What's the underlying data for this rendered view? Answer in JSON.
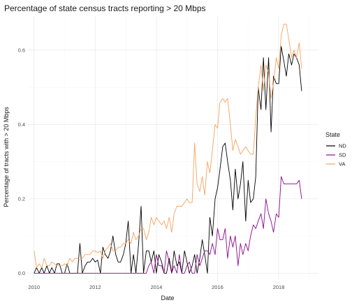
{
  "chart_data": {
    "type": "line",
    "title": "Percentage of state census tracts reporting > 20 Mbps",
    "xlabel": "Date",
    "ylabel": "Percentage of tracts with > 20 Mbps",
    "xlim": [
      2009.8,
      2019.3
    ],
    "ylim": [
      -0.02,
      0.69
    ],
    "x_ticks": [
      2010,
      2012,
      2014,
      2016,
      2018
    ],
    "y_ticks": [
      0.0,
      0.2,
      0.4,
      0.6
    ],
    "y_tick_labels": [
      "0.0",
      "0.2",
      "0.4",
      "0.6"
    ],
    "grid": true,
    "legend": {
      "title": "State",
      "placement": "right"
    },
    "series": [
      {
        "name": "ND",
        "color": "#000000",
        "x": [
          2010.0,
          2010.08,
          2010.17,
          2010.25,
          2010.33,
          2010.42,
          2010.5,
          2010.58,
          2010.67,
          2010.75,
          2010.83,
          2010.92,
          2011.0,
          2011.08,
          2011.17,
          2011.25,
          2011.33,
          2011.42,
          2011.5,
          2011.58,
          2011.67,
          2011.75,
          2011.83,
          2011.92,
          2012.0,
          2012.08,
          2012.17,
          2012.25,
          2012.33,
          2012.42,
          2012.5,
          2012.58,
          2012.67,
          2012.75,
          2012.83,
          2012.92,
          2013.0,
          2013.08,
          2013.17,
          2013.25,
          2013.33,
          2013.42,
          2013.5,
          2013.58,
          2013.67,
          2013.75,
          2013.83,
          2013.92,
          2014.0,
          2014.08,
          2014.17,
          2014.25,
          2014.33,
          2014.42,
          2014.5,
          2014.58,
          2014.67,
          2014.75,
          2014.83,
          2014.92,
          2015.0,
          2015.08,
          2015.17,
          2015.25,
          2015.33,
          2015.42,
          2015.5,
          2015.58,
          2015.67,
          2015.75,
          2015.83,
          2015.92,
          2016.0,
          2016.08,
          2016.17,
          2016.25,
          2016.33,
          2016.42,
          2016.5,
          2016.58,
          2016.67,
          2016.75,
          2016.83,
          2016.92,
          2017.0,
          2017.08,
          2017.17,
          2017.25,
          2017.33,
          2017.42,
          2017.5,
          2017.58,
          2017.67,
          2017.75,
          2017.83,
          2017.92,
          2018.0,
          2018.08,
          2018.17,
          2018.25,
          2018.33,
          2018.42,
          2018.5,
          2018.58,
          2018.67,
          2018.75
        ],
        "values": [
          0.0,
          0.015,
          0.0,
          0.015,
          0.0,
          0.02,
          0.0,
          0.015,
          0.0,
          0.025,
          0.025,
          0.0,
          0.0,
          0.025,
          0.0,
          0.0,
          0.0,
          0.0,
          0.08,
          0.0,
          0.02,
          0.03,
          0.03,
          0.04,
          0.03,
          0.035,
          0.0,
          0.07,
          0.05,
          0.04,
          0.06,
          0.1,
          0.05,
          0.03,
          0.03,
          0.05,
          0.08,
          0.14,
          0.0,
          0.05,
          0.0,
          0.08,
          0.18,
          0.0,
          0.06,
          0.06,
          0.03,
          0.06,
          0.0,
          0.05,
          0.03,
          0.0,
          0.0,
          0.04,
          0.0,
          0.06,
          0.02,
          0.03,
          0.0,
          0.06,
          0.03,
          0.0,
          0.02,
          0.05,
          0.0,
          0.04,
          0.09,
          0.05,
          0.0,
          0.15,
          0.1,
          0.2,
          0.23,
          0.28,
          0.34,
          0.35,
          0.3,
          0.25,
          0.17,
          0.28,
          0.2,
          0.24,
          0.3,
          0.14,
          0.25,
          0.19,
          0.2,
          0.26,
          0.5,
          0.44,
          0.58,
          0.44,
          0.58,
          0.38,
          0.53,
          0.51,
          0.51,
          0.61,
          0.57,
          0.53,
          0.59,
          0.56,
          0.59,
          0.58,
          0.56,
          0.49
        ]
      },
      {
        "name": "SD",
        "color": "#8b0a8b",
        "x": [
          2010.0,
          2010.08,
          2010.17,
          2010.25,
          2010.33,
          2010.42,
          2010.5,
          2010.58,
          2010.67,
          2010.75,
          2010.83,
          2010.92,
          2011.0,
          2011.08,
          2011.17,
          2011.25,
          2011.33,
          2011.42,
          2011.5,
          2011.58,
          2011.67,
          2011.75,
          2011.83,
          2011.92,
          2012.0,
          2012.08,
          2012.17,
          2012.25,
          2012.33,
          2012.42,
          2012.5,
          2012.58,
          2012.67,
          2012.75,
          2012.83,
          2012.92,
          2013.0,
          2013.08,
          2013.17,
          2013.25,
          2013.33,
          2013.42,
          2013.5,
          2013.58,
          2013.67,
          2013.75,
          2013.83,
          2013.92,
          2014.0,
          2014.08,
          2014.17,
          2014.25,
          2014.33,
          2014.42,
          2014.5,
          2014.58,
          2014.67,
          2014.75,
          2014.83,
          2014.92,
          2015.0,
          2015.08,
          2015.17,
          2015.25,
          2015.33,
          2015.42,
          2015.5,
          2015.58,
          2015.67,
          2015.75,
          2015.83,
          2015.92,
          2016.0,
          2016.08,
          2016.17,
          2016.25,
          2016.33,
          2016.42,
          2016.5,
          2016.58,
          2016.67,
          2016.75,
          2016.83,
          2016.92,
          2017.0,
          2017.08,
          2017.17,
          2017.25,
          2017.33,
          2017.42,
          2017.5,
          2017.58,
          2017.67,
          2017.75,
          2017.83,
          2017.92,
          2018.0,
          2018.08,
          2018.17,
          2018.25,
          2018.33,
          2018.42,
          2018.5,
          2018.58,
          2018.67,
          2018.75
        ],
        "values": [
          0.0,
          0.0,
          0.0,
          0.0,
          0.0,
          0.0,
          0.0,
          0.0,
          0.0,
          0.0,
          0.0,
          0.0,
          0.0,
          0.0,
          0.0,
          0.0,
          0.0,
          0.0,
          0.0,
          0.0,
          0.0,
          0.0,
          0.0,
          0.0,
          0.0,
          0.0,
          0.0,
          0.0,
          0.0,
          0.0,
          0.0,
          0.0,
          0.0,
          0.0,
          0.0,
          0.0,
          0.0,
          0.0,
          0.0,
          0.0,
          0.0,
          0.0,
          0.0,
          0.0,
          0.0,
          0.02,
          0.03,
          0.0,
          0.05,
          0.02,
          0.02,
          0.0,
          0.06,
          0.03,
          0.0,
          0.02,
          0.0,
          0.05,
          0.0,
          0.0,
          0.02,
          0.03,
          0.0,
          0.0,
          0.05,
          0.02,
          0.04,
          0.06,
          0.06,
          0.05,
          0.08,
          0.05,
          0.12,
          0.09,
          0.09,
          0.12,
          0.04,
          0.1,
          0.07,
          0.1,
          0.02,
          0.08,
          0.05,
          0.08,
          0.06,
          0.1,
          0.13,
          0.12,
          0.14,
          0.16,
          0.12,
          0.2,
          0.16,
          0.14,
          0.11,
          0.16,
          0.15,
          0.26,
          0.24,
          0.24,
          0.24,
          0.24,
          0.24,
          0.24,
          0.25,
          0.2
        ]
      },
      {
        "name": "VA",
        "color": "#f4a460",
        "x": [
          2010.0,
          2010.08,
          2010.17,
          2010.25,
          2010.33,
          2010.42,
          2010.5,
          2010.58,
          2010.67,
          2010.75,
          2010.83,
          2010.92,
          2011.0,
          2011.08,
          2011.17,
          2011.25,
          2011.33,
          2011.42,
          2011.5,
          2011.58,
          2011.67,
          2011.75,
          2011.83,
          2011.92,
          2012.0,
          2012.08,
          2012.17,
          2012.25,
          2012.33,
          2012.42,
          2012.5,
          2012.58,
          2012.67,
          2012.75,
          2012.83,
          2012.92,
          2013.0,
          2013.08,
          2013.17,
          2013.25,
          2013.33,
          2013.42,
          2013.5,
          2013.58,
          2013.67,
          2013.75,
          2013.83,
          2013.92,
          2014.0,
          2014.08,
          2014.17,
          2014.25,
          2014.33,
          2014.42,
          2014.5,
          2014.58,
          2014.67,
          2014.75,
          2014.83,
          2014.92,
          2015.0,
          2015.08,
          2015.17,
          2015.25,
          2015.33,
          2015.42,
          2015.5,
          2015.58,
          2015.67,
          2015.75,
          2015.83,
          2015.92,
          2016.0,
          2016.08,
          2016.17,
          2016.25,
          2016.33,
          2016.42,
          2016.5,
          2016.58,
          2016.67,
          2016.75,
          2016.83,
          2016.92,
          2017.0,
          2017.08,
          2017.17,
          2017.25,
          2017.33,
          2017.42,
          2017.5,
          2017.58,
          2017.67,
          2017.75,
          2017.83,
          2017.92,
          2018.0,
          2018.08,
          2018.17,
          2018.25,
          2018.33,
          2018.42,
          2018.5,
          2018.58,
          2018.67,
          2018.75
        ],
        "values": [
          0.06,
          0.015,
          0.025,
          0.015,
          0.04,
          0.02,
          0.02,
          0.03,
          0.025,
          0.02,
          0.02,
          0.02,
          0.025,
          0.02,
          0.04,
          0.03,
          0.04,
          0.04,
          0.035,
          0.04,
          0.05,
          0.05,
          0.05,
          0.06,
          0.06,
          0.055,
          0.06,
          0.04,
          0.06,
          0.07,
          0.08,
          0.06,
          0.06,
          0.07,
          0.07,
          0.08,
          0.08,
          0.09,
          0.08,
          0.11,
          0.09,
          0.1,
          0.12,
          0.12,
          0.09,
          0.11,
          0.15,
          0.13,
          0.15,
          0.14,
          0.13,
          0.14,
          0.12,
          0.15,
          0.11,
          0.16,
          0.18,
          0.18,
          0.18,
          0.19,
          0.2,
          0.19,
          0.19,
          0.35,
          0.24,
          0.22,
          0.26,
          0.21,
          0.3,
          0.27,
          0.33,
          0.4,
          0.39,
          0.46,
          0.47,
          0.46,
          0.47,
          0.4,
          0.33,
          0.36,
          0.34,
          0.32,
          0.33,
          0.34,
          0.33,
          0.32,
          0.32,
          0.42,
          0.5,
          0.56,
          0.49,
          0.56,
          0.54,
          0.47,
          0.51,
          0.58,
          0.55,
          0.64,
          0.67,
          0.67,
          0.63,
          0.58,
          0.6,
          0.58,
          0.62,
          0.55
        ]
      }
    ]
  }
}
